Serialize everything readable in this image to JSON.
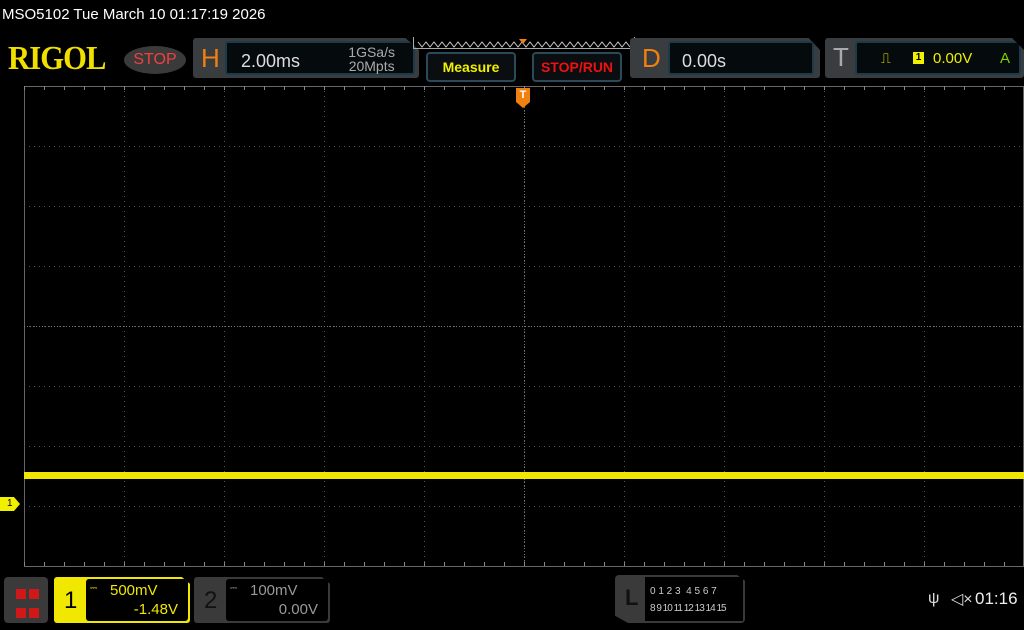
{
  "title": "MSO5102  Tue March 10 01:17:19 2026",
  "logo": "RIGOL",
  "run_state": "STOP",
  "horizontal": {
    "letter": "H",
    "timebase": "2.00ms",
    "sample_rate": "1GSa/s",
    "memory_depth": "20Mpts"
  },
  "buttons": {
    "measure": "Measure",
    "stop_run": "STOP/RUN"
  },
  "delay": {
    "letter": "D",
    "value": "0.00s"
  },
  "trigger": {
    "letter": "T",
    "edge_icon": "rising-edge-icon",
    "source": "1",
    "level": "0.00V",
    "mode": "A"
  },
  "markers": {
    "channel1": "1",
    "trigger_pos": "T"
  },
  "grid": {
    "h_divisions": 10,
    "v_divisions": 8
  },
  "trace": {
    "channel": 1,
    "color": "#f0e800",
    "level_div_from_top": 6.5
  },
  "channels": [
    {
      "num": "1",
      "coupling_icon": "dc-icon",
      "scale": "500mV",
      "offset": "-1.48V",
      "color": "#f0e800",
      "active": true
    },
    {
      "num": "2",
      "coupling_icon": "dc-icon",
      "scale": "100mV",
      "offset": "0.00V",
      "color": "#999999",
      "active": false
    }
  ],
  "logic": {
    "letter": "L",
    "row1": "0 1 2 3  4 5 6 7",
    "row2": "8 9 10 11 12 13 14 15"
  },
  "status": {
    "usb_icon": "usb-icon",
    "sound_icon": "muted-speaker-icon",
    "time": "01:16"
  }
}
